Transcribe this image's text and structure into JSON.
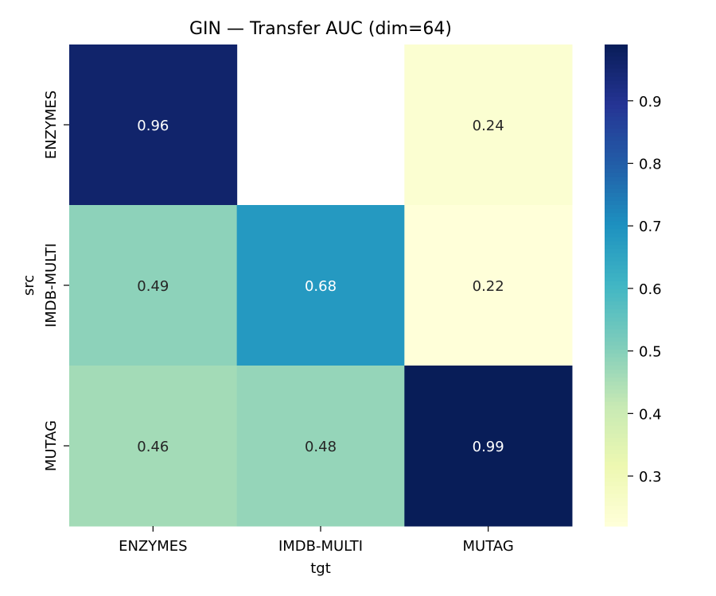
{
  "chart_data": {
    "type": "heatmap",
    "title": "GIN — Transfer AUC (dim=64)",
    "xlabel": "tgt",
    "ylabel": "src",
    "x_categories": [
      "ENZYMES",
      "IMDB-MULTI",
      "MUTAG"
    ],
    "y_categories": [
      "ENZYMES",
      "IMDB-MULTI",
      "MUTAG"
    ],
    "values": [
      [
        0.96,
        null,
        0.24
      ],
      [
        0.49,
        0.68,
        0.22
      ],
      [
        0.46,
        0.48,
        0.99
      ]
    ],
    "value_labels": [
      [
        "0.96",
        "",
        "0.24"
      ],
      [
        "0.49",
        "0.68",
        "0.22"
      ],
      [
        "0.46",
        "0.48",
        "0.99"
      ]
    ],
    "colorbar": {
      "colormap": "YlGnBu",
      "vmin": 0.22,
      "vmax": 0.99,
      "ticks": [
        0.3,
        0.4,
        0.5,
        0.6,
        0.7,
        0.8,
        0.9
      ],
      "tick_labels": [
        "0.3",
        "0.4",
        "0.5",
        "0.6",
        "0.7",
        "0.8",
        "0.9"
      ]
    },
    "grid": false
  }
}
